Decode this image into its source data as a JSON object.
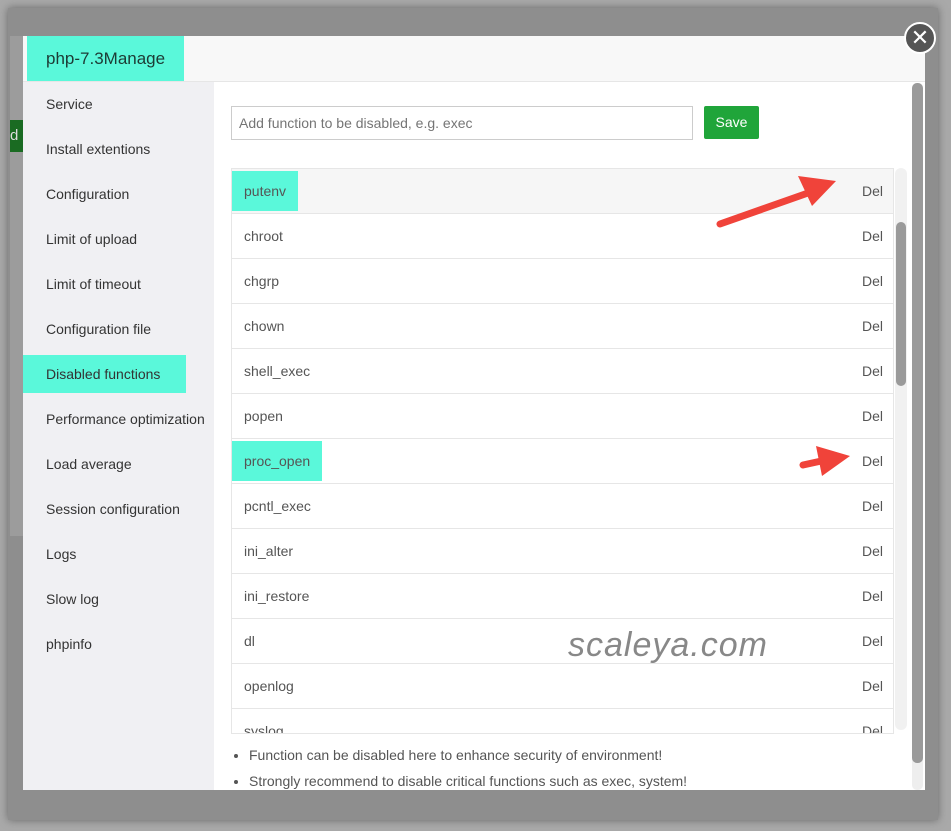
{
  "background": {
    "button_fragment": "d"
  },
  "dialog": {
    "title": "php-7.3Manage",
    "close_icon": "close-icon"
  },
  "sidebar": {
    "items": [
      {
        "label": "Service"
      },
      {
        "label": "Install extentions"
      },
      {
        "label": "Configuration"
      },
      {
        "label": "Limit of upload"
      },
      {
        "label": "Limit of timeout"
      },
      {
        "label": "Configuration file"
      },
      {
        "label": "Disabled functions",
        "active": true
      },
      {
        "label": "Performance optimization"
      },
      {
        "label": "Load average"
      },
      {
        "label": "Session configuration"
      },
      {
        "label": "Logs"
      },
      {
        "label": "Slow log"
      },
      {
        "label": "phpinfo"
      }
    ]
  },
  "main": {
    "input": {
      "placeholder": "Add function to be disabled, e.g. exec",
      "value": ""
    },
    "save_label": "Save",
    "del_label": "Del",
    "functions": [
      "putenv",
      "chroot",
      "chgrp",
      "chown",
      "shell_exec",
      "popen",
      "proc_open",
      "pcntl_exec",
      "ini_alter",
      "ini_restore",
      "dl",
      "openlog",
      "syslog"
    ],
    "highlighted": [
      "putenv",
      "proc_open"
    ],
    "notes": [
      "Function can be disabled here to enhance security of environment!",
      "Strongly recommend to disable critical functions such as exec, system!"
    ]
  },
  "colors": {
    "highlight": "#5af8da",
    "save": "#20a53a",
    "arrow": "#f0433a"
  },
  "watermark": "scaleya.com"
}
